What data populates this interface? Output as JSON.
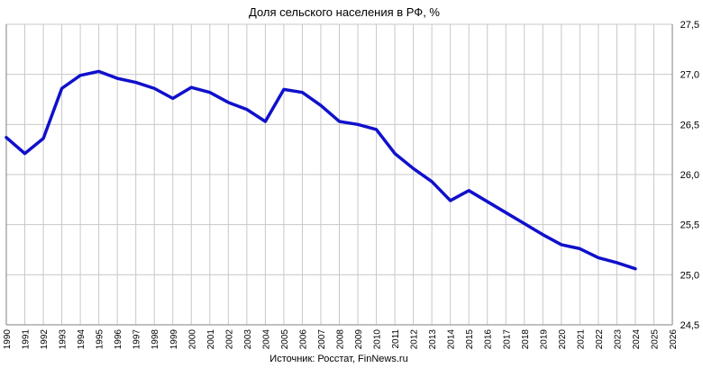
{
  "chart_data": {
    "type": "line",
    "title": "Доля сельского населения в РФ, %",
    "source": "Источник: Росстат, FinNews.ru",
    "x": [
      "1990",
      "1991",
      "1992",
      "1993",
      "1994",
      "1995",
      "1996",
      "1997",
      "1998",
      "1999",
      "2000",
      "2001",
      "2002",
      "2003",
      "2004",
      "2005",
      "2006",
      "2007",
      "2008",
      "2009",
      "2010",
      "2011",
      "2012",
      "2013",
      "2014",
      "2015",
      "2016",
      "2017",
      "2018",
      "2019",
      "2020",
      "2021",
      "2022",
      "2023",
      "2024",
      "2025",
      "2026"
    ],
    "series": [
      {
        "values": [
          26.37,
          26.21,
          26.36,
          26.86,
          26.99,
          27.03,
          26.96,
          26.92,
          26.86,
          26.76,
          26.87,
          26.82,
          26.72,
          26.65,
          26.53,
          26.85,
          26.82,
          26.69,
          26.53,
          26.5,
          26.45,
          26.21,
          26.06,
          25.93,
          25.74,
          25.84,
          25.73,
          25.62,
          25.51,
          25.4,
          25.3,
          25.26,
          25.17,
          25.12,
          25.06,
          null,
          null
        ]
      }
    ],
    "y_ticks": [
      "24,5",
      "25,0",
      "25,5",
      "26,0",
      "26,5",
      "27,0",
      "27,5"
    ],
    "ylim": [
      24.5,
      27.5
    ],
    "grid": true,
    "colors": {
      "line": "#1010cc",
      "grid": "#c8c8c8",
      "axis": "#808080"
    }
  }
}
